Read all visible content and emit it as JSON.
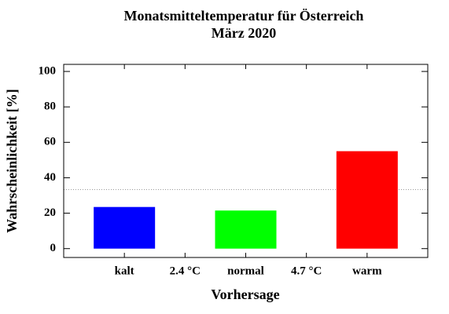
{
  "chart_data": {
    "type": "bar",
    "title": [
      "Monatsmitteltemperatur für Österreich",
      "März 2020"
    ],
    "categories": [
      "kalt",
      "normal",
      "warm"
    ],
    "values": [
      23.5,
      21.5,
      55
    ],
    "colors": [
      "#0000ff",
      "#00ff00",
      "#ff0000"
    ],
    "thresholds": [
      "2.4 °C",
      "4.7 °C"
    ],
    "xlabel": "Vorhersage",
    "ylabel": "Wahrscheinlichkeit [%]",
    "ylim": [
      -5,
      104
    ],
    "yticks": [
      0,
      20,
      40,
      60,
      80,
      100
    ],
    "reference_line": 33.3
  }
}
